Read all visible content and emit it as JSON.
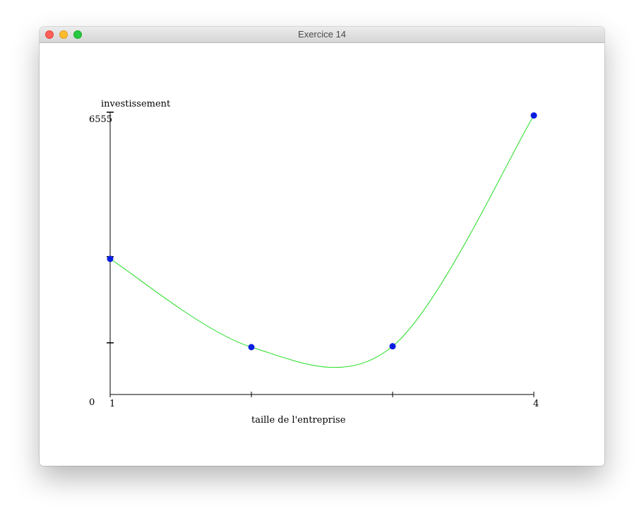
{
  "window": {
    "title": "Exercice 14"
  },
  "chart_data": {
    "type": "line",
    "xlabel": "taille de l'entreprise",
    "ylabel": "investissement",
    "xlim": [
      1,
      4
    ],
    "ylim": [
      0,
      6555
    ],
    "x_tick_labels": [
      {
        "x": 1,
        "label": "1"
      },
      {
        "x": 4,
        "label": "4"
      }
    ],
    "x_ticks": [
      1,
      2,
      3,
      4
    ],
    "y_tick_labels": [
      {
        "y": 0,
        "label": "0"
      },
      {
        "y": 6555,
        "label": "6555"
      }
    ],
    "y_ticks": [
      1200,
      3200,
      6555
    ],
    "points": [
      {
        "x": 1,
        "y": 3150
      },
      {
        "x": 2,
        "y": 1100
      },
      {
        "x": 3,
        "y": 1120
      },
      {
        "x": 4,
        "y": 6480
      }
    ],
    "curve_color": "#22dd22",
    "point_color": "#0a1ee0",
    "axis_color": "#000000",
    "grid": false
  }
}
